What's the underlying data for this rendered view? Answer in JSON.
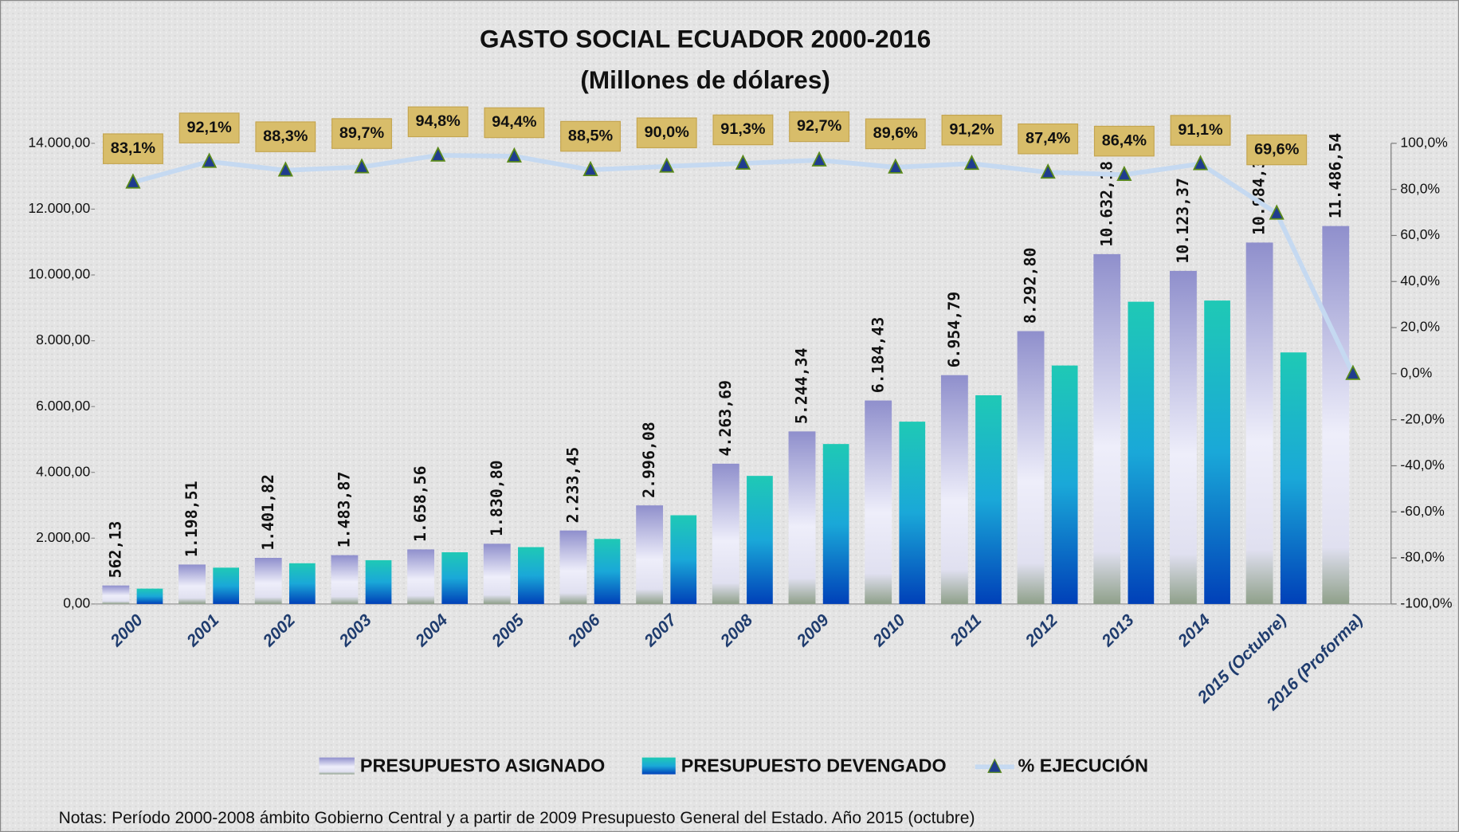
{
  "chart_data": {
    "type": "bar-line",
    "title": "GASTO SOCIAL ECUADOR 2000-2016",
    "subtitle": "(Millones de dólares)",
    "note": "Notas: Período 2000-2008 ámbito Gobierno Central y a partir de 2009 Presupuesto General del Estado. Año 2015 (octubre)",
    "categories": [
      "2000",
      "2001",
      "2002",
      "2003",
      "2004",
      "2005",
      "2006",
      "2007",
      "2008",
      "2009",
      "2010",
      "2011",
      "2012",
      "2013",
      "2014",
      "2015 (Octubre)",
      "2016 (Proforma)"
    ],
    "series": [
      {
        "name": "PRESUPUESTO ASIGNADO",
        "color": "#8f8fcc",
        "values": [
          562.13,
          1198.51,
          1401.82,
          1483.87,
          1658.56,
          1830.8,
          2233.45,
          2996.08,
          4263.69,
          5244.34,
          6184.43,
          6954.79,
          8292.8,
          10632.18,
          10123.37,
          10984.33,
          11486.54
        ],
        "value_labels": [
          "562,13",
          "1.198,51",
          "1.401,82",
          "1.483,87",
          "1.658,56",
          "1.830,80",
          "2.233,45",
          "2.996,08",
          "4.263,69",
          "5.244,34",
          "6.184,43",
          "6.954,79",
          "8.292,80",
          "10.632,18",
          "10.123,37",
          "10.984,33",
          "11.486,54"
        ]
      },
      {
        "name": "PRESUPUESTO DEVENGADO",
        "color": "#1fc9b5",
        "values": [
          467,
          1104,
          1238,
          1331,
          1572,
          1728,
          1977,
          2697,
          3893,
          4862,
          5541,
          6343,
          7248,
          9186,
          9222,
          7645,
          null
        ]
      },
      {
        "name": "% EJECUCIÓN",
        "color": "#c5d9f1",
        "axis": "y2",
        "values": [
          83.1,
          92.1,
          88.3,
          89.7,
          94.8,
          94.4,
          88.5,
          90.0,
          91.3,
          92.7,
          89.6,
          91.2,
          87.4,
          86.4,
          91.1,
          69.6,
          0
        ],
        "value_labels": [
          "83,1%",
          "92,1%",
          "88,3%",
          "89,7%",
          "94,8%",
          "94,4%",
          "88,5%",
          "90,0%",
          "91,3%",
          "92,7%",
          "89,6%",
          "91,2%",
          "87,4%",
          "86,4%",
          "91,1%",
          "69,6%",
          null
        ]
      }
    ],
    "ylim": [
      0,
      14000
    ],
    "yticks": [
      {
        "value": 0,
        "label": "0,00"
      },
      {
        "value": 2000,
        "label": "2.000,00"
      },
      {
        "value": 4000,
        "label": "4.000,00"
      },
      {
        "value": 6000,
        "label": "6.000,00"
      },
      {
        "value": 8000,
        "label": "8.000,00"
      },
      {
        "value": 10000,
        "label": "10.000,00"
      },
      {
        "value": 12000,
        "label": "12.000,00"
      },
      {
        "value": 14000,
        "label": "14.000,00"
      }
    ],
    "y2lim": [
      -100,
      100
    ],
    "y2ticks": [
      {
        "value": -100,
        "label": "-100,0%"
      },
      {
        "value": -80,
        "label": "-80,0%"
      },
      {
        "value": -60,
        "label": "-60,0%"
      },
      {
        "value": -40,
        "label": "-40,0%"
      },
      {
        "value": -20,
        "label": "-20,0%"
      },
      {
        "value": 0,
        "label": "0,0%"
      },
      {
        "value": 20,
        "label": "20,0%"
      },
      {
        "value": 40,
        "label": "40,0%"
      },
      {
        "value": 60,
        "label": "60,0%"
      },
      {
        "value": 80,
        "label": "80,0%"
      },
      {
        "value": 100,
        "label": "100,0%"
      }
    ],
    "grid": false,
    "legend": "bottom"
  }
}
